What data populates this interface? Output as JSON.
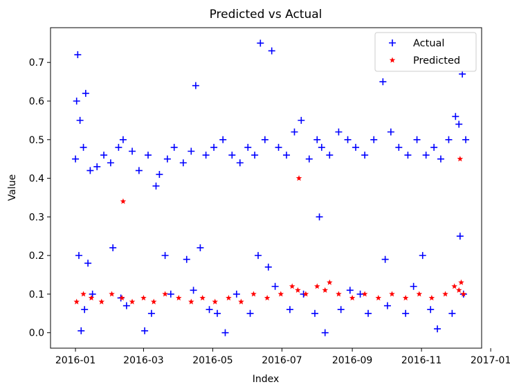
{
  "chart_data": {
    "type": "scatter",
    "title": "Predicted vs Actual",
    "xlabel": "Index",
    "ylabel": "Value",
    "x_type": "date",
    "xlim": [
      "2015-12-10",
      "2016-12-24"
    ],
    "ylim": [
      -0.04,
      0.79
    ],
    "x_ticks": [
      "2016-01-01",
      "2016-03-01",
      "2016-05-01",
      "2016-07-01",
      "2016-09-01",
      "2016-11-01",
      "2017-01-01"
    ],
    "x_tick_labels": [
      "2016-01",
      "2016-03",
      "2016-05",
      "2016-07",
      "2016-09",
      "2016-11",
      "2017-01"
    ],
    "y_ticks": [
      0.0,
      0.1,
      0.2,
      0.3,
      0.4,
      0.5,
      0.6,
      0.7
    ],
    "y_tick_labels": [
      "0.0",
      "0.1",
      "0.2",
      "0.3",
      "0.4",
      "0.5",
      "0.6",
      "0.7"
    ],
    "legend_position": "upper right",
    "grid": false,
    "series": [
      {
        "name": "Actual",
        "marker": "plus",
        "color": "#0000ff",
        "x": [
          "2016-01-01",
          "2016-01-02",
          "2016-01-03",
          "2016-01-05",
          "2016-01-08",
          "2016-01-10",
          "2016-01-14",
          "2016-01-20",
          "2016-01-26",
          "2016-02-01",
          "2016-02-08",
          "2016-02-12",
          "2016-02-20",
          "2016-02-26",
          "2016-03-05",
          "2016-03-12",
          "2016-03-15",
          "2016-03-22",
          "2016-03-28",
          "2016-04-05",
          "2016-04-12",
          "2016-04-16",
          "2016-04-25",
          "2016-05-02",
          "2016-05-10",
          "2016-05-18",
          "2016-05-25",
          "2016-06-01",
          "2016-06-07",
          "2016-06-12",
          "2016-06-16",
          "2016-06-22",
          "2016-06-28",
          "2016-07-05",
          "2016-07-12",
          "2016-07-18",
          "2016-07-25",
          "2016-08-01",
          "2016-08-05",
          "2016-08-12",
          "2016-08-20",
          "2016-08-28",
          "2016-09-04",
          "2016-09-12",
          "2016-09-20",
          "2016-09-28",
          "2016-10-05",
          "2016-10-12",
          "2016-10-20",
          "2016-10-28",
          "2016-11-05",
          "2016-11-12",
          "2016-11-18",
          "2016-11-25",
          "2016-12-01",
          "2016-12-04",
          "2016-12-07",
          "2016-12-10",
          "2016-01-04",
          "2016-01-12",
          "2016-02-03",
          "2016-03-20",
          "2016-04-08",
          "2016-04-20",
          "2016-06-10",
          "2016-06-19",
          "2016-08-03",
          "2016-09-30",
          "2016-11-02",
          "2016-12-05",
          "2016-01-09",
          "2016-02-15",
          "2016-03-08",
          "2016-04-28",
          "2016-05-05",
          "2016-06-03",
          "2016-07-08",
          "2016-07-30",
          "2016-08-22",
          "2016-09-15",
          "2016-10-02",
          "2016-10-18",
          "2016-11-09",
          "2016-11-28",
          "2016-01-06",
          "2016-01-16",
          "2016-02-10",
          "2016-03-02",
          "2016-03-25",
          "2016-04-14",
          "2016-05-12",
          "2016-05-22",
          "2016-06-25",
          "2016-07-20",
          "2016-08-08",
          "2016-08-30",
          "2016-09-08",
          "2016-10-25",
          "2016-11-15",
          "2016-12-08"
        ],
        "y": [
          0.45,
          0.6,
          0.72,
          0.55,
          0.48,
          0.62,
          0.42,
          0.43,
          0.46,
          0.44,
          0.48,
          0.5,
          0.47,
          0.42,
          0.46,
          0.38,
          0.41,
          0.45,
          0.48,
          0.44,
          0.47,
          0.64,
          0.46,
          0.48,
          0.5,
          0.46,
          0.44,
          0.48,
          0.46,
          0.75,
          0.5,
          0.73,
          0.48,
          0.46,
          0.52,
          0.55,
          0.45,
          0.5,
          0.48,
          0.46,
          0.52,
          0.5,
          0.48,
          0.46,
          0.5,
          0.65,
          0.52,
          0.48,
          0.46,
          0.5,
          0.46,
          0.48,
          0.45,
          0.5,
          0.56,
          0.54,
          0.67,
          0.5,
          0.2,
          0.18,
          0.22,
          0.2,
          0.19,
          0.22,
          0.2,
          0.17,
          0.3,
          0.19,
          0.2,
          0.25,
          0.06,
          0.07,
          0.05,
          0.06,
          0.05,
          0.05,
          0.06,
          0.05,
          0.06,
          0.05,
          0.07,
          0.05,
          0.06,
          0.05,
          0.005,
          0.1,
          0.09,
          0.005,
          0.1,
          0.11,
          0.0,
          0.1,
          0.12,
          0.1,
          0.0,
          0.11,
          0.1,
          0.12,
          0.01,
          0.1
        ]
      },
      {
        "name": "Predicted",
        "marker": "star",
        "color": "#ff0000",
        "x": [
          "2016-01-02",
          "2016-01-08",
          "2016-01-15",
          "2016-01-24",
          "2016-02-02",
          "2016-02-11",
          "2016-02-20",
          "2016-03-01",
          "2016-03-10",
          "2016-03-20",
          "2016-04-01",
          "2016-04-12",
          "2016-04-22",
          "2016-05-03",
          "2016-05-15",
          "2016-05-26",
          "2016-06-06",
          "2016-06-18",
          "2016-06-30",
          "2016-07-10",
          "2016-07-15",
          "2016-07-22",
          "2016-08-01",
          "2016-08-08",
          "2016-08-12",
          "2016-08-20",
          "2016-09-01",
          "2016-09-12",
          "2016-09-24",
          "2016-10-06",
          "2016-10-18",
          "2016-10-30",
          "2016-11-10",
          "2016-11-22",
          "2016-11-30",
          "2016-12-04",
          "2016-12-06",
          "2016-12-08",
          "2016-02-12",
          "2016-07-16",
          "2016-12-05"
        ],
        "y": [
          0.08,
          0.1,
          0.09,
          0.08,
          0.1,
          0.09,
          0.08,
          0.09,
          0.08,
          0.1,
          0.09,
          0.08,
          0.09,
          0.08,
          0.09,
          0.08,
          0.1,
          0.09,
          0.1,
          0.12,
          0.11,
          0.1,
          0.12,
          0.11,
          0.13,
          0.1,
          0.09,
          0.1,
          0.09,
          0.1,
          0.09,
          0.1,
          0.09,
          0.1,
          0.12,
          0.11,
          0.13,
          0.1,
          0.34,
          0.4,
          0.45
        ]
      }
    ]
  }
}
